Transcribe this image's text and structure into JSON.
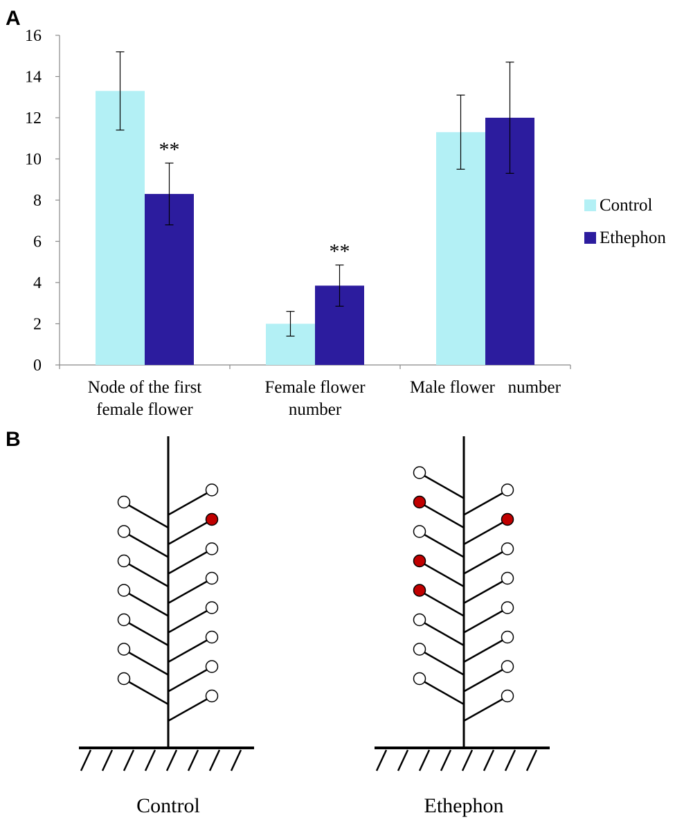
{
  "panel_a_label": "A",
  "panel_b_label": "B",
  "chart_data": {
    "type": "bar",
    "title": "",
    "xlabel": "",
    "ylabel": "",
    "ylim": [
      0,
      16
    ],
    "yticks": [
      0,
      2,
      4,
      6,
      8,
      10,
      12,
      14,
      16
    ],
    "categories": [
      {
        "lines": [
          "Node of the first",
          "female flower"
        ]
      },
      {
        "lines": [
          "Female flower",
          "number"
        ]
      },
      {
        "lines": [
          "Male flower   number"
        ]
      }
    ],
    "series": [
      {
        "name": "Control",
        "color": "#b3f0f5",
        "values": [
          13.3,
          2.0,
          11.3
        ],
        "errors": [
          1.9,
          0.6,
          1.8
        ]
      },
      {
        "name": "Ethephon",
        "color": "#2c1c9e",
        "values": [
          8.3,
          3.85,
          12.0
        ],
        "errors": [
          1.5,
          1.0,
          2.7
        ]
      }
    ],
    "significance": [
      {
        "category_index": 0,
        "series": "Ethephon",
        "text": "**"
      },
      {
        "category_index": 1,
        "series": "Ethephon",
        "text": "**"
      }
    ],
    "legend": {
      "placement": "right",
      "entries": [
        "Control",
        "Ethephon"
      ]
    }
  },
  "diagram": {
    "female_color": "#c00000",
    "male_color": "#ffffff",
    "plants": [
      {
        "label": "Control",
        "left_nodes": [
          "male",
          "male",
          "male",
          "male",
          "male",
          "male",
          "male"
        ],
        "right_nodes": [
          "male",
          "female",
          "male",
          "male",
          "male",
          "male",
          "male",
          "male"
        ]
      },
      {
        "label": "Ethephon",
        "left_nodes": [
          "male",
          "female",
          "male",
          "female",
          "female",
          "male",
          "male",
          "male"
        ],
        "right_nodes": [
          "male",
          "female",
          "male",
          "male",
          "male",
          "male",
          "male",
          "male"
        ]
      }
    ]
  }
}
